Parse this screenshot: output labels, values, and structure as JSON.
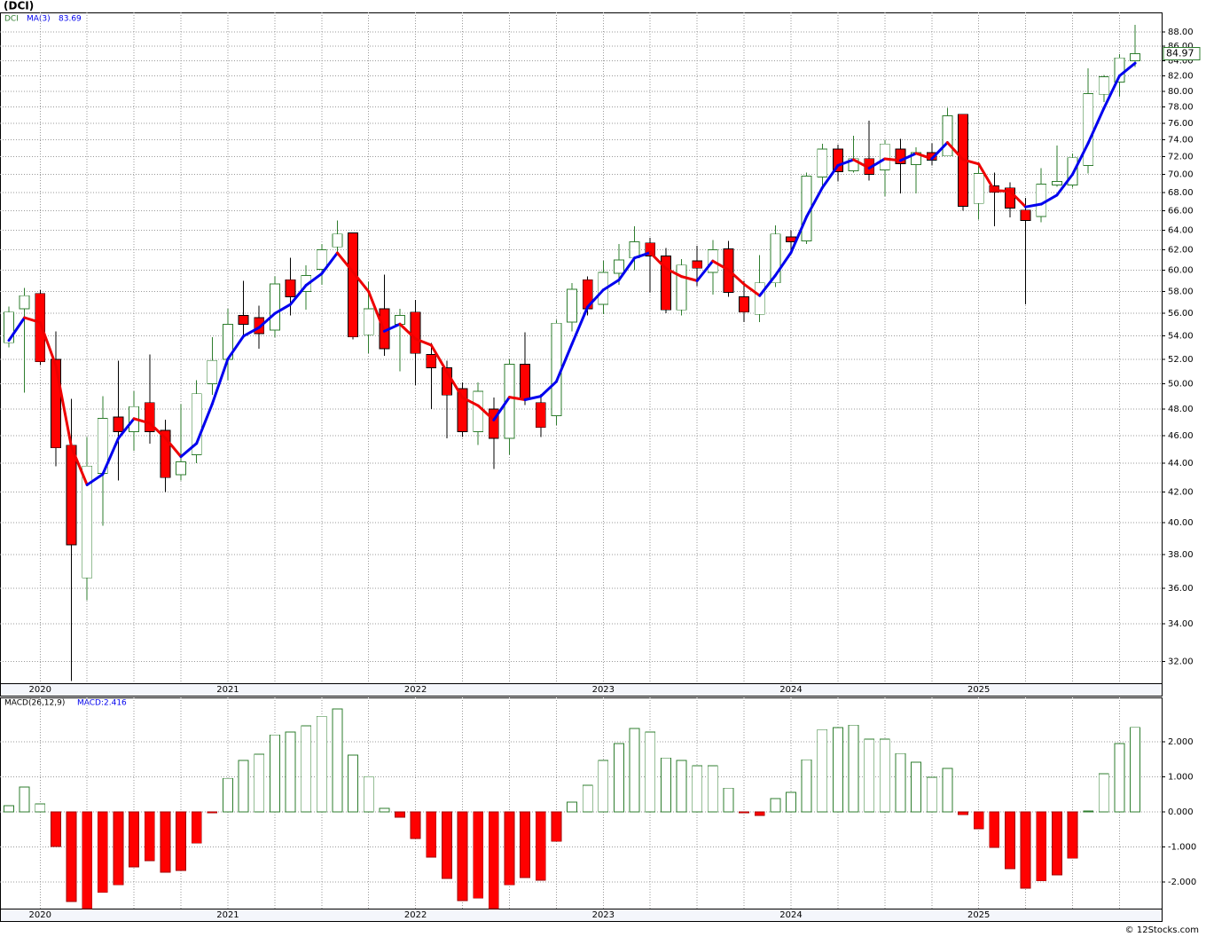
{
  "header": {
    "title": "(DCI)",
    "footer": "© 12Stocks.com"
  },
  "chart_data": [
    {
      "type": "candlestick",
      "symbol": "DCI",
      "log": true,
      "grid": true,
      "up_color": "#2e7d2e",
      "down_color": "#ff0000",
      "categories": [
        null,
        null,
        "2020",
        null,
        null,
        null,
        null,
        null,
        null,
        null,
        null,
        null,
        null,
        null,
        "2021",
        null,
        null,
        null,
        null,
        null,
        null,
        null,
        null,
        null,
        null,
        null,
        "2022",
        null,
        null,
        null,
        null,
        null,
        null,
        null,
        null,
        null,
        null,
        null,
        "2023",
        null,
        null,
        null,
        null,
        null,
        null,
        null,
        null,
        null,
        null,
        null,
        "2024",
        null,
        null,
        null,
        null,
        null,
        null,
        null,
        null,
        null,
        null,
        null,
        "2025",
        null,
        null,
        null,
        null,
        null,
        null,
        null,
        null,
        null,
        null
      ],
      "open": [
        53.4,
        56.4,
        57.8,
        52.0,
        45.3,
        36.6,
        43.3,
        47.4,
        46.3,
        48.5,
        46.4,
        43.2,
        44.6,
        50.0,
        52.0,
        55.8,
        55.6,
        54.5,
        59.1,
        58.0,
        60.1,
        62.3,
        63.7,
        54.1,
        56.4,
        55.0,
        56.1,
        52.4,
        51.3,
        49.6,
        46.3,
        48.0,
        45.8,
        51.6,
        48.5,
        47.5,
        55.2,
        59.1,
        56.8,
        59.7,
        61.2,
        62.7,
        61.4,
        56.3,
        60.9,
        59.8,
        62.1,
        57.5,
        55.9,
        58.8,
        63.3,
        62.9,
        69.7,
        72.9,
        70.4,
        71.8,
        70.5,
        72.9,
        71.1,
        72.5,
        72.1,
        77.1,
        66.8,
        68.7,
        68.5,
        66.1,
        65.4,
        68.8,
        68.8,
        71.0,
        79.6,
        81.2,
        84.0
      ],
      "high": [
        56.6,
        58.3,
        58.1,
        54.4,
        48.8,
        45.9,
        49.0,
        51.9,
        49.4,
        52.4,
        47.2,
        48.4,
        50.3,
        53.9,
        56.4,
        59.0,
        56.7,
        59.4,
        61.2,
        60.5,
        62.6,
        65.0,
        63.7,
        58.9,
        59.6,
        56.4,
        57.2,
        53.4,
        51.9,
        50.1,
        50.1,
        48.9,
        52.0,
        54.3,
        49.2,
        55.4,
        58.8,
        59.4,
        60.9,
        62.6,
        64.4,
        63.2,
        62.2,
        61.1,
        62.4,
        63.0,
        62.9,
        59.0,
        61.5,
        64.5,
        64.0,
        70.2,
        73.5,
        73.4,
        74.5,
        76.3,
        74.0,
        74.1,
        73.1,
        73.6,
        77.9,
        77.1,
        71.2,
        70.2,
        69.1,
        67.4,
        70.7,
        73.3,
        72.4,
        83.0,
        82.1,
        84.9,
        89.0
      ],
      "low": [
        53.0,
        49.3,
        51.5,
        43.8,
        31.0,
        35.3,
        39.8,
        42.8,
        44.9,
        45.4,
        42.0,
        42.8,
        44.0,
        49.1,
        50.3,
        53.8,
        52.9,
        53.9,
        55.8,
        56.3,
        58.6,
        61.5,
        53.7,
        52.5,
        52.3,
        51.0,
        49.9,
        48.0,
        45.8,
        45.9,
        45.3,
        43.6,
        44.6,
        48.3,
        45.9,
        46.8,
        54.4,
        55.8,
        55.9,
        58.6,
        60.0,
        57.9,
        56.0,
        55.8,
        58.5,
        57.7,
        57.5,
        55.2,
        55.2,
        58.4,
        62.0,
        62.6,
        68.6,
        69.2,
        70.2,
        69.3,
        67.6,
        67.9,
        67.9,
        71.0,
        72.1,
        66.0,
        65.1,
        64.4,
        65.3,
        56.8,
        64.8,
        68.6,
        68.5,
        70.1,
        78.6,
        79.3,
        83.2
      ],
      "close": [
        56.1,
        57.6,
        51.8,
        45.1,
        38.6,
        43.8,
        47.3,
        46.3,
        48.2,
        46.3,
        43.0,
        44.1,
        49.2,
        51.9,
        55.0,
        55.0,
        54.2,
        58.7,
        57.5,
        59.5,
        62.0,
        63.6,
        53.9,
        56.4,
        52.9,
        55.8,
        52.5,
        51.3,
        49.1,
        46.3,
        49.4,
        45.8,
        51.6,
        48.8,
        46.6,
        55.1,
        58.2,
        56.4,
        59.8,
        61.0,
        62.8,
        61.4,
        56.3,
        60.5,
        60.2,
        62.0,
        57.9,
        56.1,
        58.8,
        63.6,
        62.8,
        69.8,
        72.9,
        70.3,
        71.8,
        70.0,
        73.5,
        71.2,
        72.5,
        71.6,
        76.9,
        66.5,
        70.1,
        68.0,
        66.3,
        65.0,
        68.9,
        69.2,
        71.9,
        79.7,
        81.9,
        84.4,
        84.97
      ],
      "ma": {
        "name": "MA(3)",
        "up_color": "#0000ee",
        "down_color": "#ee0000",
        "values": [
          53.6,
          55.6,
          55.17,
          51.5,
          45.17,
          42.5,
          43.23,
          45.8,
          47.27,
          46.93,
          45.83,
          44.47,
          45.43,
          48.4,
          52.03,
          53.97,
          54.73,
          55.97,
          56.8,
          58.57,
          59.67,
          61.7,
          59.83,
          57.97,
          54.4,
          55.03,
          53.73,
          53.2,
          50.97,
          48.9,
          48.27,
          47.17,
          48.93,
          48.73,
          49.0,
          50.17,
          53.3,
          56.57,
          58.13,
          59.07,
          61.2,
          61.73,
          60.17,
          59.4,
          59.0,
          60.9,
          60.03,
          58.67,
          57.6,
          59.5,
          61.73,
          65.4,
          68.5,
          71.0,
          71.67,
          70.7,
          71.77,
          71.57,
          72.4,
          71.77,
          73.67,
          71.67,
          71.17,
          68.2,
          68.13,
          66.43,
          66.73,
          67.7,
          70.0,
          73.6,
          77.83,
          82.0,
          83.69
        ]
      },
      "ylim": [
        30.9,
        90.8
      ],
      "yticks": [
        {
          "value": 32,
          "label": "32.00"
        },
        {
          "value": 34,
          "label": "34.00"
        },
        {
          "value": 36,
          "label": "36.00"
        },
        {
          "value": 38,
          "label": "38.00"
        },
        {
          "value": 40,
          "label": "40.00"
        },
        {
          "value": 42,
          "label": "42.00"
        },
        {
          "value": 44,
          "label": "44.00"
        },
        {
          "value": 46,
          "label": "46.00"
        },
        {
          "value": 48,
          "label": "48.00"
        },
        {
          "value": 50,
          "label": "50.00"
        },
        {
          "value": 52,
          "label": "52.00"
        },
        {
          "value": 54,
          "label": "54.00"
        },
        {
          "value": 56,
          "label": "56.00"
        },
        {
          "value": 58,
          "label": "58.00"
        },
        {
          "value": 60,
          "label": "60.00"
        },
        {
          "value": 62,
          "label": "62.00"
        },
        {
          "value": 64,
          "label": "64.00"
        },
        {
          "value": 66,
          "label": "66.00"
        },
        {
          "value": 68,
          "label": "68.00"
        },
        {
          "value": 70,
          "label": "70.00"
        },
        {
          "value": 72,
          "label": "72.00"
        },
        {
          "value": 74,
          "label": "74.00"
        },
        {
          "value": 76,
          "label": "76.00"
        },
        {
          "value": 78,
          "label": "78.00"
        },
        {
          "value": 80,
          "label": "80.00"
        },
        {
          "value": 82,
          "label": "82.00"
        },
        {
          "value": 84,
          "label": "84.00"
        },
        {
          "value": 86,
          "label": "86.00"
        },
        {
          "value": 88,
          "label": "88.00"
        }
      ]
    },
    {
      "type": "bar",
      "title": "MACD(26,12,9)",
      "value_text": "MACD:2.416",
      "grid": true,
      "up_color": "#2e7d2e",
      "down_color": "#ff0000",
      "categories": [
        null,
        null,
        "2020",
        null,
        null,
        null,
        null,
        null,
        null,
        null,
        null,
        null,
        null,
        null,
        "2021",
        null,
        null,
        null,
        null,
        null,
        null,
        null,
        null,
        null,
        null,
        null,
        "2022",
        null,
        null,
        null,
        null,
        null,
        null,
        null,
        null,
        null,
        null,
        null,
        "2023",
        null,
        null,
        null,
        null,
        null,
        null,
        null,
        null,
        null,
        null,
        null,
        "2024",
        null,
        null,
        null,
        null,
        null,
        null,
        null,
        null,
        null,
        null,
        null,
        "2025",
        null,
        null,
        null,
        null,
        null,
        null,
        null,
        null,
        null,
        null
      ],
      "values": [
        0.18,
        0.71,
        0.23,
        -0.99,
        -2.56,
        -2.76,
        -2.3,
        -2.08,
        -1.57,
        -1.39,
        -1.72,
        -1.67,
        -0.89,
        -0.03,
        0.96,
        1.47,
        1.65,
        2.2,
        2.28,
        2.46,
        2.73,
        2.94,
        1.62,
        1.01,
        0.1,
        -0.15,
        -0.76,
        -1.29,
        -1.9,
        -2.53,
        -2.46,
        -2.76,
        -2.08,
        -1.87,
        -1.95,
        -0.84,
        0.28,
        0.76,
        1.47,
        1.95,
        2.38,
        2.28,
        1.54,
        1.47,
        1.32,
        1.32,
        0.68,
        -0.03,
        -0.1,
        0.38,
        0.56,
        1.49,
        2.35,
        2.41,
        2.48,
        2.08,
        2.08,
        1.67,
        1.42,
        0.99,
        1.24,
        -0.08,
        -0.48,
        -1.01,
        -1.62,
        -2.18,
        -1.97,
        -1.8,
        -1.32,
        0.03,
        1.09,
        1.95,
        2.416
      ],
      "ylim": [
        -2.76,
        3.27
      ],
      "yticks": [
        {
          "value": -2,
          "label": "-2.000"
        },
        {
          "value": -1,
          "label": "-1.000"
        },
        {
          "value": 0,
          "label": "0.000"
        },
        {
          "value": 1,
          "label": "1.000"
        },
        {
          "value": 2,
          "label": "2.000"
        }
      ]
    }
  ]
}
